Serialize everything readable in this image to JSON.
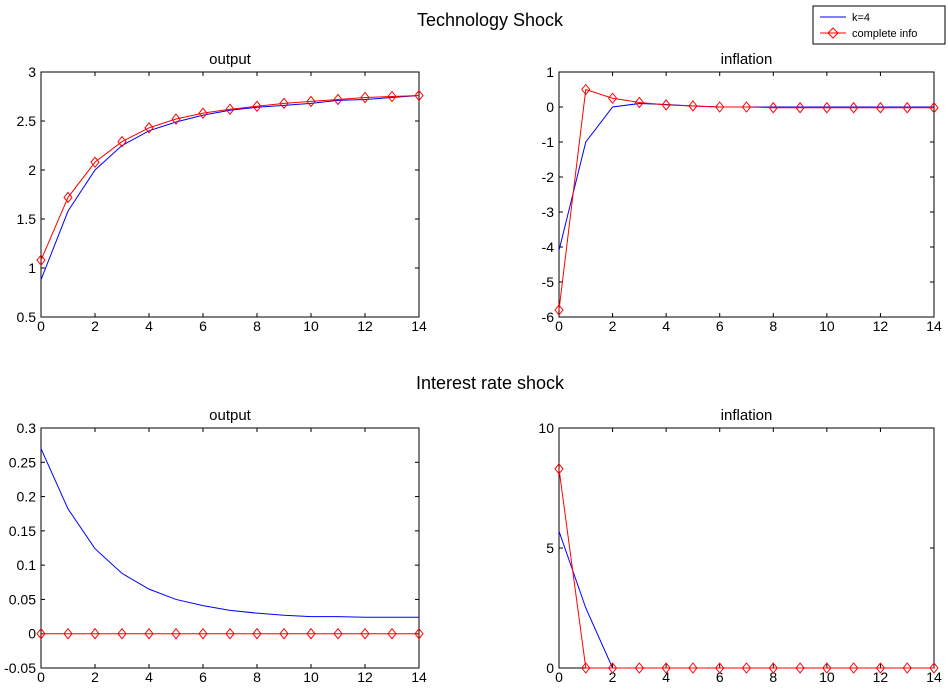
{
  "supertitles": [
    "Technology Shock",
    "Interest rate shock"
  ],
  "legend": {
    "items": [
      {
        "label": "k=4",
        "color": "#0000ff",
        "marker": "none"
      },
      {
        "label": "complete info",
        "color": "#ff0000",
        "marker": "diamond"
      }
    ],
    "placement": "top-right"
  },
  "chart_data": [
    {
      "type": "line",
      "title": "output",
      "group": "Technology Shock",
      "x": [
        0,
        1,
        2,
        3,
        4,
        5,
        6,
        7,
        8,
        9,
        10,
        11,
        12,
        13,
        14
      ],
      "xlim": [
        0,
        14
      ],
      "xticks": [
        "0",
        "2",
        "4",
        "6",
        "8",
        "10",
        "12",
        "14"
      ],
      "ylim": [
        0.5,
        3
      ],
      "yticks": [
        "0.5",
        "1",
        "1.5",
        "2",
        "2.5",
        "3"
      ],
      "series": [
        {
          "name": "k=4",
          "color": "#0000ff",
          "values": [
            0.88,
            1.58,
            2.0,
            2.25,
            2.4,
            2.49,
            2.56,
            2.61,
            2.64,
            2.66,
            2.68,
            2.71,
            2.72,
            2.74,
            2.76
          ]
        },
        {
          "name": "complete info",
          "color": "#ff0000",
          "values": [
            1.08,
            1.72,
            2.08,
            2.29,
            2.43,
            2.52,
            2.58,
            2.62,
            2.65,
            2.68,
            2.7,
            2.72,
            2.74,
            2.75,
            2.76
          ]
        }
      ]
    },
    {
      "type": "line",
      "title": "inflation",
      "group": "Technology Shock",
      "x": [
        0,
        1,
        2,
        3,
        4,
        5,
        6,
        7,
        8,
        9,
        10,
        11,
        12,
        13,
        14
      ],
      "xlim": [
        0,
        14
      ],
      "xticks": [
        "0",
        "2",
        "4",
        "6",
        "8",
        "10",
        "12",
        "14"
      ],
      "ylim": [
        -6,
        1
      ],
      "yticks": [
        "-6",
        "-5",
        "-4",
        "-3",
        "-2",
        "-1",
        "0",
        "1"
      ],
      "series": [
        {
          "name": "k=4",
          "color": "#0000ff",
          "values": [
            -4.1,
            -1.0,
            0.0,
            0.1,
            0.07,
            0.03,
            0.0,
            0.0,
            0.0,
            0.0,
            0.0,
            0.0,
            0.0,
            0.0,
            0.0
          ]
        },
        {
          "name": "complete info",
          "color": "#ff0000",
          "values": [
            -5.8,
            0.5,
            0.25,
            0.13,
            0.06,
            0.03,
            0.0,
            0.0,
            -0.02,
            -0.02,
            -0.02,
            -0.02,
            -0.02,
            -0.02,
            -0.02
          ]
        }
      ]
    },
    {
      "type": "line",
      "title": "output",
      "group": "Interest rate shock",
      "x": [
        0,
        1,
        2,
        3,
        4,
        5,
        6,
        7,
        8,
        9,
        10,
        11,
        12,
        13,
        14
      ],
      "xlim": [
        0,
        14
      ],
      "xticks": [
        "0",
        "2",
        "4",
        "6",
        "8",
        "10",
        "12",
        "14"
      ],
      "ylim": [
        -0.05,
        0.3
      ],
      "yticks": [
        "-0.05",
        "0",
        "0.05",
        "0.1",
        "0.15",
        "0.2",
        "0.25",
        "0.3"
      ],
      "series": [
        {
          "name": "k=4",
          "color": "#0000ff",
          "values": [
            0.27,
            0.182,
            0.124,
            0.088,
            0.065,
            0.05,
            0.041,
            0.034,
            0.03,
            0.027,
            0.025,
            0.025,
            0.024,
            0.024,
            0.024
          ]
        },
        {
          "name": "complete info",
          "color": "#ff0000",
          "values": [
            0,
            0,
            0,
            0,
            0,
            0,
            0,
            0,
            0,
            0,
            0,
            0,
            0,
            0,
            0
          ]
        }
      ]
    },
    {
      "type": "line",
      "title": "inflation",
      "group": "Interest rate shock",
      "x": [
        0,
        1,
        2,
        3,
        4,
        5,
        6,
        7,
        8,
        9,
        10,
        11,
        12,
        13,
        14
      ],
      "xlim": [
        0,
        14
      ],
      "xticks": [
        "0",
        "2",
        "4",
        "6",
        "8",
        "10",
        "12",
        "14"
      ],
      "ylim": [
        0,
        10
      ],
      "yticks": [
        "0",
        "5",
        "10"
      ],
      "series": [
        {
          "name": "k=4",
          "color": "#0000ff",
          "values": [
            5.7,
            2.5,
            0,
            0,
            0,
            0,
            0,
            0,
            0,
            0,
            0,
            0,
            0,
            0,
            0
          ]
        },
        {
          "name": "complete info",
          "color": "#ff0000",
          "values": [
            8.3,
            0,
            0,
            0,
            0,
            0,
            0,
            0,
            0,
            0,
            0,
            0,
            0,
            0,
            0
          ]
        }
      ]
    }
  ]
}
